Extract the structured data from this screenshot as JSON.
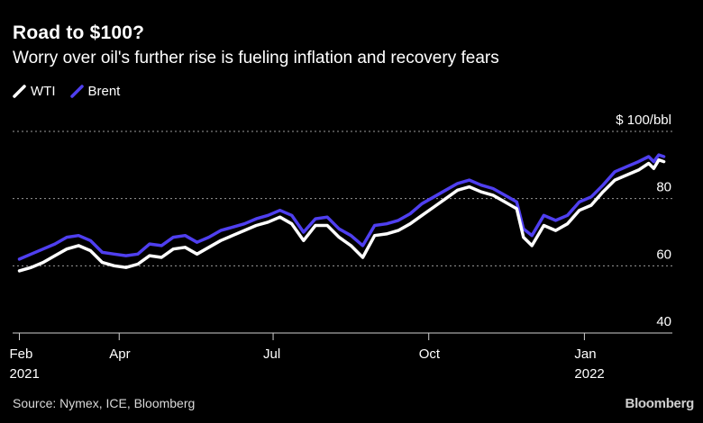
{
  "header": {
    "title": "Road to $100?",
    "subtitle": "Worry over oil's further rise is fueling inflation and recovery fears"
  },
  "legend": [
    {
      "label": "WTI",
      "color": "#ffffff"
    },
    {
      "label": "Brent",
      "color": "#4f3ff0"
    }
  ],
  "footer": {
    "source": "Source: Nymex, ICE, Bloomberg",
    "brand": "Bloomberg"
  },
  "chart_data": {
    "type": "line",
    "title": "Road to $100?",
    "subtitle": "Worry over oil's further rise is fueling inflation and recovery fears",
    "unit": "$ 100/bbl",
    "ylim": [
      40,
      100
    ],
    "yticks": [
      40,
      60,
      80,
      100
    ],
    "ytick_labels": [
      "40",
      "60",
      "80",
      "$ 100/bbl"
    ],
    "xlim": [
      "2021-01-28",
      "2022-02-22"
    ],
    "xticks": [
      {
        "date": "2021-02-01",
        "label": "Feb",
        "sublabel": "2021"
      },
      {
        "date": "2021-04-01",
        "label": "Apr",
        "sublabel": ""
      },
      {
        "date": "2021-07-01",
        "label": "Jul",
        "sublabel": ""
      },
      {
        "date": "2021-10-01",
        "label": "Oct",
        "sublabel": ""
      },
      {
        "date": "2022-01-01",
        "label": "Jan",
        "sublabel": "2022"
      }
    ],
    "grid": "horizontal dotted",
    "legend_position": "top-left",
    "series": [
      {
        "name": "Brent",
        "color": "#4f3ff0",
        "points": [
          [
            "2021-02-01",
            62.0
          ],
          [
            "2021-02-08",
            63.5
          ],
          [
            "2021-02-15",
            65.0
          ],
          [
            "2021-02-22",
            66.5
          ],
          [
            "2021-03-01",
            68.5
          ],
          [
            "2021-03-08",
            69.0
          ],
          [
            "2021-03-15",
            67.5
          ],
          [
            "2021-03-22",
            64.0
          ],
          [
            "2021-03-29",
            63.5
          ],
          [
            "2021-04-05",
            63.0
          ],
          [
            "2021-04-12",
            63.5
          ],
          [
            "2021-04-19",
            66.5
          ],
          [
            "2021-04-26",
            66.0
          ],
          [
            "2021-05-03",
            68.5
          ],
          [
            "2021-05-10",
            69.0
          ],
          [
            "2021-05-17",
            67.0
          ],
          [
            "2021-05-24",
            68.5
          ],
          [
            "2021-05-31",
            70.5
          ],
          [
            "2021-06-07",
            71.5
          ],
          [
            "2021-06-14",
            72.5
          ],
          [
            "2021-06-21",
            74.0
          ],
          [
            "2021-06-28",
            75.0
          ],
          [
            "2021-07-05",
            76.5
          ],
          [
            "2021-07-12",
            75.0
          ],
          [
            "2021-07-19",
            70.0
          ],
          [
            "2021-07-26",
            74.0
          ],
          [
            "2021-08-02",
            74.5
          ],
          [
            "2021-08-09",
            71.0
          ],
          [
            "2021-08-16",
            69.0
          ],
          [
            "2021-08-23",
            66.0
          ],
          [
            "2021-08-30",
            72.0
          ],
          [
            "2021-09-06",
            72.5
          ],
          [
            "2021-09-13",
            73.5
          ],
          [
            "2021-09-20",
            75.5
          ],
          [
            "2021-09-27",
            78.5
          ],
          [
            "2021-10-04",
            80.5
          ],
          [
            "2021-10-11",
            82.5
          ],
          [
            "2021-10-18",
            84.5
          ],
          [
            "2021-10-25",
            85.5
          ],
          [
            "2021-11-01",
            84.0
          ],
          [
            "2021-11-08",
            83.0
          ],
          [
            "2021-11-15",
            81.0
          ],
          [
            "2021-11-22",
            79.0
          ],
          [
            "2021-11-26",
            71.0
          ],
          [
            "2021-12-01",
            69.0
          ],
          [
            "2021-12-08",
            75.0
          ],
          [
            "2021-12-15",
            73.5
          ],
          [
            "2021-12-22",
            75.0
          ],
          [
            "2021-12-29",
            79.0
          ],
          [
            "2022-01-05",
            80.5
          ],
          [
            "2022-01-12",
            84.0
          ],
          [
            "2022-01-19",
            88.0
          ],
          [
            "2022-01-26",
            89.5
          ],
          [
            "2022-02-02",
            91.0
          ],
          [
            "2022-02-08",
            92.5
          ],
          [
            "2022-02-11",
            91.0
          ],
          [
            "2022-02-14",
            93.0
          ],
          [
            "2022-02-17",
            92.5
          ]
        ]
      },
      {
        "name": "WTI",
        "color": "#ffffff",
        "points": [
          [
            "2021-02-01",
            58.5
          ],
          [
            "2021-02-08",
            59.5
          ],
          [
            "2021-02-15",
            61.0
          ],
          [
            "2021-02-22",
            63.0
          ],
          [
            "2021-03-01",
            65.0
          ],
          [
            "2021-03-08",
            66.0
          ],
          [
            "2021-03-15",
            64.5
          ],
          [
            "2021-03-22",
            61.0
          ],
          [
            "2021-03-29",
            60.0
          ],
          [
            "2021-04-05",
            59.5
          ],
          [
            "2021-04-12",
            60.5
          ],
          [
            "2021-04-19",
            63.0
          ],
          [
            "2021-04-26",
            62.5
          ],
          [
            "2021-05-03",
            65.0
          ],
          [
            "2021-05-10",
            65.5
          ],
          [
            "2021-05-17",
            63.5
          ],
          [
            "2021-05-24",
            65.5
          ],
          [
            "2021-05-31",
            67.5
          ],
          [
            "2021-06-07",
            69.0
          ],
          [
            "2021-06-14",
            70.5
          ],
          [
            "2021-06-21",
            72.0
          ],
          [
            "2021-06-28",
            73.0
          ],
          [
            "2021-07-05",
            74.5
          ],
          [
            "2021-07-12",
            72.5
          ],
          [
            "2021-07-19",
            67.5
          ],
          [
            "2021-07-26",
            72.0
          ],
          [
            "2021-08-02",
            72.0
          ],
          [
            "2021-08-09",
            68.5
          ],
          [
            "2021-08-16",
            66.0
          ],
          [
            "2021-08-23",
            62.5
          ],
          [
            "2021-08-30",
            69.0
          ],
          [
            "2021-09-06",
            69.5
          ],
          [
            "2021-09-13",
            70.5
          ],
          [
            "2021-09-20",
            72.5
          ],
          [
            "2021-09-27",
            75.0
          ],
          [
            "2021-10-04",
            77.5
          ],
          [
            "2021-10-11",
            80.0
          ],
          [
            "2021-10-18",
            82.5
          ],
          [
            "2021-10-25",
            83.5
          ],
          [
            "2021-11-01",
            82.0
          ],
          [
            "2021-11-08",
            81.0
          ],
          [
            "2021-11-15",
            79.0
          ],
          [
            "2021-11-22",
            77.0
          ],
          [
            "2021-11-26",
            68.5
          ],
          [
            "2021-12-01",
            66.0
          ],
          [
            "2021-12-08",
            72.0
          ],
          [
            "2021-12-15",
            70.5
          ],
          [
            "2021-12-22",
            72.5
          ],
          [
            "2021-12-29",
            76.5
          ],
          [
            "2022-01-05",
            78.0
          ],
          [
            "2022-01-12",
            82.0
          ],
          [
            "2022-01-19",
            85.5
          ],
          [
            "2022-01-26",
            87.0
          ],
          [
            "2022-02-02",
            88.5
          ],
          [
            "2022-02-08",
            90.5
          ],
          [
            "2022-02-11",
            89.0
          ],
          [
            "2022-02-14",
            91.5
          ],
          [
            "2022-02-17",
            91.0
          ]
        ]
      }
    ]
  }
}
